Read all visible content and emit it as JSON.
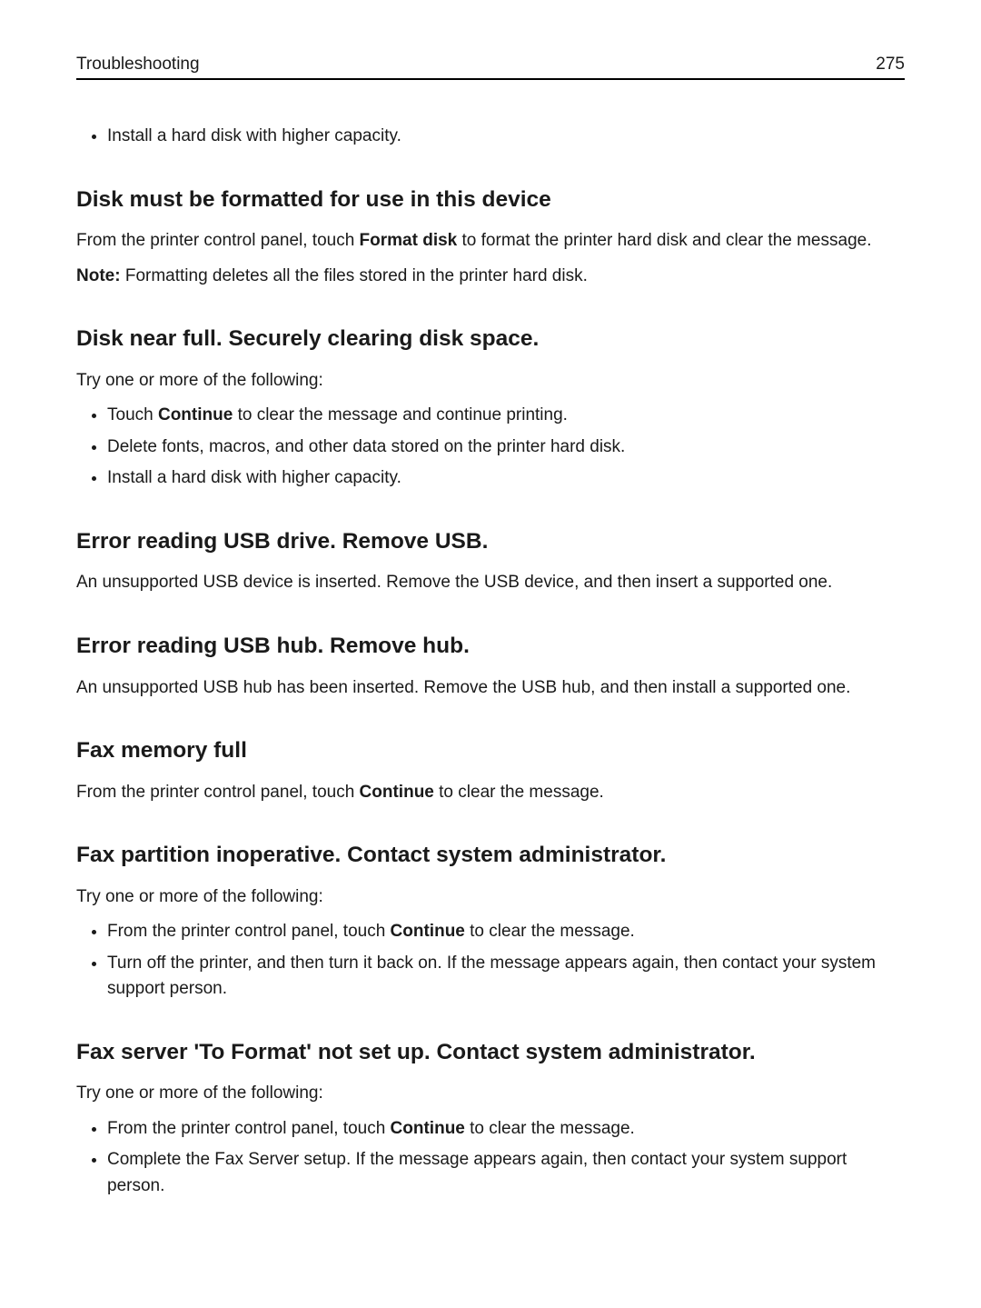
{
  "header": {
    "title": "Troubleshooting",
    "page_number": "275"
  },
  "intro_bullets": [
    "Install a hard disk with higher capacity."
  ],
  "sections": [
    {
      "heading": "Disk must be formatted for use in this device",
      "paras": [
        {
          "before": "From the printer control panel, touch ",
          "bold": "Format disk",
          "after": " to format the printer hard disk and clear the message."
        },
        {
          "before": "",
          "bold": "Note:",
          "after": " Formatting deletes all the files stored in the printer hard disk."
        }
      ],
      "bullets": []
    },
    {
      "heading": "Disk near full. Securely clearing disk space.",
      "paras": [
        {
          "before": "Try one or more of the following:",
          "bold": "",
          "after": ""
        }
      ],
      "bullets": [
        {
          "before": "Touch ",
          "bold": "Continue",
          "after": " to clear the message and continue printing."
        },
        {
          "before": "Delete fonts, macros, and other data stored on the printer hard disk.",
          "bold": "",
          "after": ""
        },
        {
          "before": "Install a hard disk with higher capacity.",
          "bold": "",
          "after": ""
        }
      ]
    },
    {
      "heading": "Error reading USB drive. Remove USB.",
      "paras": [
        {
          "before": "An unsupported USB device is inserted. Remove the USB device, and then insert a supported one.",
          "bold": "",
          "after": ""
        }
      ],
      "bullets": []
    },
    {
      "heading": "Error reading USB hub. Remove hub.",
      "paras": [
        {
          "before": "An unsupported USB hub has been inserted. Remove the USB hub, and then install a supported one.",
          "bold": "",
          "after": ""
        }
      ],
      "bullets": []
    },
    {
      "heading": "Fax memory full",
      "paras": [
        {
          "before": "From the printer control panel, touch ",
          "bold": "Continue",
          "after": " to clear the message."
        }
      ],
      "bullets": []
    },
    {
      "heading": "Fax partition inoperative. Contact system administrator.",
      "paras": [
        {
          "before": "Try one or more of the following:",
          "bold": "",
          "after": ""
        }
      ],
      "bullets": [
        {
          "before": "From the printer control panel, touch ",
          "bold": "Continue",
          "after": " to clear the message."
        },
        {
          "before": "Turn off the printer, and then turn it back on. If the message appears again, then contact your system support person.",
          "bold": "",
          "after": ""
        }
      ]
    },
    {
      "heading": "Fax server 'To Format' not set up. Contact system administrator.",
      "paras": [
        {
          "before": "Try one or more of the following:",
          "bold": "",
          "after": ""
        }
      ],
      "bullets": [
        {
          "before": "From the printer control panel, touch ",
          "bold": "Continue",
          "after": " to clear the message."
        },
        {
          "before": "Complete the Fax Server setup. If the message appears again, then contact your system support person.",
          "bold": "",
          "after": ""
        }
      ]
    }
  ]
}
